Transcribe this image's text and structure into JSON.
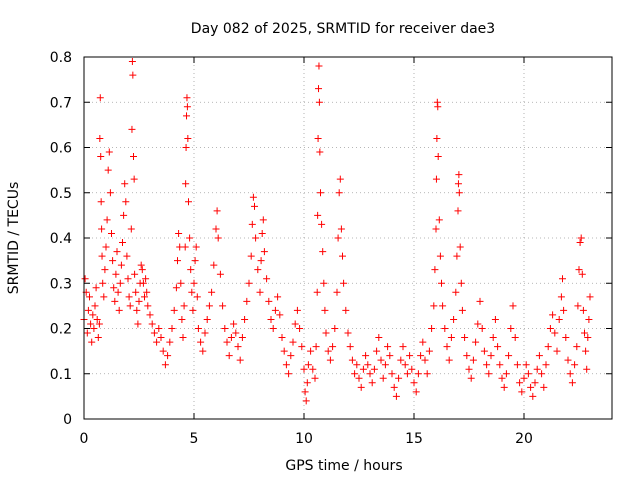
{
  "chart_data": {
    "type": "scatter",
    "title": "Day 082 of 2025, SRMTID for receiver dae3",
    "xlabel": "GPS time / hours",
    "ylabel": "SRMTID / TECUs",
    "xlim": [
      0,
      24
    ],
    "ylim": [
      0,
      0.8
    ],
    "xticks": [
      0,
      5,
      10,
      15,
      20
    ],
    "xtick_labels": [
      "0",
      "5",
      "10",
      "15",
      "20"
    ],
    "yticks": [
      0,
      0.1,
      0.2,
      0.3,
      0.4,
      0.5,
      0.6,
      0.7,
      0.8
    ],
    "ytick_labels": [
      "0",
      "0.1",
      "0.2",
      "0.3",
      "0.4",
      "0.5",
      "0.6",
      "0.7",
      "0.8"
    ],
    "grid": true,
    "marker": "+",
    "color": "#ff0000",
    "series": [
      {
        "name": "SRMTID",
        "points": [
          [
            0.0,
            0.22
          ],
          [
            0.05,
            0.31
          ],
          [
            0.1,
            0.28
          ],
          [
            0.15,
            0.19
          ],
          [
            0.2,
            0.24
          ],
          [
            0.25,
            0.27
          ],
          [
            0.3,
            0.21
          ],
          [
            0.35,
            0.17
          ],
          [
            0.4,
            0.23
          ],
          [
            0.45,
            0.2
          ],
          [
            0.5,
            0.25
          ],
          [
            0.55,
            0.29
          ],
          [
            0.6,
            0.22
          ],
          [
            0.65,
            0.18
          ],
          [
            0.7,
            0.21
          ],
          [
            0.72,
            0.62
          ],
          [
            0.74,
            0.71
          ],
          [
            0.76,
            0.58
          ],
          [
            0.78,
            0.48
          ],
          [
            0.8,
            0.42
          ],
          [
            0.82,
            0.36
          ],
          [
            0.85,
            0.3
          ],
          [
            0.9,
            0.27
          ],
          [
            0.95,
            0.33
          ],
          [
            1.0,
            0.38
          ],
          [
            1.05,
            0.44
          ],
          [
            1.1,
            0.55
          ],
          [
            1.15,
            0.59
          ],
          [
            1.2,
            0.5
          ],
          [
            1.25,
            0.41
          ],
          [
            1.3,
            0.35
          ],
          [
            1.35,
            0.29
          ],
          [
            1.4,
            0.26
          ],
          [
            1.45,
            0.32
          ],
          [
            1.5,
            0.37
          ],
          [
            1.55,
            0.28
          ],
          [
            1.6,
            0.24
          ],
          [
            1.65,
            0.3
          ],
          [
            1.7,
            0.34
          ],
          [
            1.75,
            0.39
          ],
          [
            1.8,
            0.45
          ],
          [
            1.85,
            0.52
          ],
          [
            1.9,
            0.48
          ],
          [
            1.95,
            0.36
          ],
          [
            2.0,
            0.31
          ],
          [
            2.05,
            0.27
          ],
          [
            2.1,
            0.25
          ],
          [
            2.15,
            0.42
          ],
          [
            2.18,
            0.64
          ],
          [
            2.2,
            0.79
          ],
          [
            2.22,
            0.76
          ],
          [
            2.25,
            0.58
          ],
          [
            2.28,
            0.53
          ],
          [
            2.3,
            0.32
          ],
          [
            2.35,
            0.28
          ],
          [
            2.4,
            0.24
          ],
          [
            2.45,
            0.21
          ],
          [
            2.5,
            0.26
          ],
          [
            2.55,
            0.3
          ],
          [
            2.6,
            0.34
          ],
          [
            2.65,
            0.33
          ],
          [
            2.7,
            0.3
          ],
          [
            2.75,
            0.27
          ],
          [
            2.8,
            0.31
          ],
          [
            2.85,
            0.28
          ],
          [
            2.9,
            0.25
          ],
          [
            3.0,
            0.23
          ],
          [
            3.1,
            0.21
          ],
          [
            3.2,
            0.19
          ],
          [
            3.3,
            0.17
          ],
          [
            3.4,
            0.2
          ],
          [
            3.5,
            0.18
          ],
          [
            3.6,
            0.15
          ],
          [
            3.7,
            0.12
          ],
          [
            3.8,
            0.14
          ],
          [
            3.9,
            0.17
          ],
          [
            4.0,
            0.2
          ],
          [
            4.1,
            0.24
          ],
          [
            4.2,
            0.29
          ],
          [
            4.25,
            0.35
          ],
          [
            4.3,
            0.41
          ],
          [
            4.35,
            0.38
          ],
          [
            4.4,
            0.3
          ],
          [
            4.45,
            0.22
          ],
          [
            4.5,
            0.18
          ],
          [
            4.55,
            0.25
          ],
          [
            4.6,
            0.38
          ],
          [
            4.62,
            0.52
          ],
          [
            4.64,
            0.6
          ],
          [
            4.66,
            0.67
          ],
          [
            4.68,
            0.71
          ],
          [
            4.7,
            0.69
          ],
          [
            4.72,
            0.62
          ],
          [
            4.75,
            0.48
          ],
          [
            4.8,
            0.4
          ],
          [
            4.85,
            0.33
          ],
          [
            4.9,
            0.28
          ],
          [
            4.95,
            0.24
          ],
          [
            5.0,
            0.3
          ],
          [
            5.05,
            0.35
          ],
          [
            5.1,
            0.38
          ],
          [
            5.15,
            0.27
          ],
          [
            5.2,
            0.2
          ],
          [
            5.3,
            0.17
          ],
          [
            5.4,
            0.15
          ],
          [
            5.5,
            0.19
          ],
          [
            5.6,
            0.22
          ],
          [
            5.7,
            0.25
          ],
          [
            5.8,
            0.28
          ],
          [
            5.9,
            0.34
          ],
          [
            6.0,
            0.42
          ],
          [
            6.05,
            0.46
          ],
          [
            6.1,
            0.4
          ],
          [
            6.2,
            0.32
          ],
          [
            6.3,
            0.25
          ],
          [
            6.4,
            0.2
          ],
          [
            6.5,
            0.17
          ],
          [
            6.6,
            0.14
          ],
          [
            6.7,
            0.18
          ],
          [
            6.8,
            0.21
          ],
          [
            6.9,
            0.19
          ],
          [
            7.0,
            0.16
          ],
          [
            7.1,
            0.13
          ],
          [
            7.2,
            0.18
          ],
          [
            7.3,
            0.22
          ],
          [
            7.4,
            0.26
          ],
          [
            7.5,
            0.3
          ],
          [
            7.6,
            0.36
          ],
          [
            7.65,
            0.43
          ],
          [
            7.7,
            0.49
          ],
          [
            7.75,
            0.47
          ],
          [
            7.8,
            0.4
          ],
          [
            7.9,
            0.33
          ],
          [
            8.0,
            0.28
          ],
          [
            8.05,
            0.35
          ],
          [
            8.1,
            0.41
          ],
          [
            8.15,
            0.44
          ],
          [
            8.2,
            0.37
          ],
          [
            8.3,
            0.31
          ],
          [
            8.4,
            0.26
          ],
          [
            8.5,
            0.22
          ],
          [
            8.6,
            0.2
          ],
          [
            8.7,
            0.24
          ],
          [
            8.8,
            0.27
          ],
          [
            8.9,
            0.23
          ],
          [
            9.0,
            0.18
          ],
          [
            9.1,
            0.15
          ],
          [
            9.2,
            0.12
          ],
          [
            9.3,
            0.1
          ],
          [
            9.4,
            0.14
          ],
          [
            9.5,
            0.17
          ],
          [
            9.6,
            0.21
          ],
          [
            9.7,
            0.24
          ],
          [
            9.8,
            0.2
          ],
          [
            9.9,
            0.16
          ],
          [
            10.0,
            0.11
          ],
          [
            10.05,
            0.06
          ],
          [
            10.1,
            0.04
          ],
          [
            10.15,
            0.08
          ],
          [
            10.2,
            0.12
          ],
          [
            10.3,
            0.15
          ],
          [
            10.4,
            0.11
          ],
          [
            10.5,
            0.09
          ],
          [
            10.55,
            0.16
          ],
          [
            10.6,
            0.28
          ],
          [
            10.62,
            0.45
          ],
          [
            10.64,
            0.62
          ],
          [
            10.66,
            0.73
          ],
          [
            10.68,
            0.78
          ],
          [
            10.7,
            0.7
          ],
          [
            10.72,
            0.59
          ],
          [
            10.75,
            0.5
          ],
          [
            10.8,
            0.43
          ],
          [
            10.85,
            0.37
          ],
          [
            10.9,
            0.3
          ],
          [
            10.95,
            0.24
          ],
          [
            11.0,
            0.19
          ],
          [
            11.1,
            0.15
          ],
          [
            11.2,
            0.13
          ],
          [
            11.3,
            0.16
          ],
          [
            11.4,
            0.2
          ],
          [
            11.5,
            0.28
          ],
          [
            11.55,
            0.4
          ],
          [
            11.6,
            0.5
          ],
          [
            11.65,
            0.53
          ],
          [
            11.7,
            0.42
          ],
          [
            11.75,
            0.36
          ],
          [
            11.8,
            0.3
          ],
          [
            11.9,
            0.24
          ],
          [
            12.0,
            0.19
          ],
          [
            12.1,
            0.16
          ],
          [
            12.2,
            0.13
          ],
          [
            12.3,
            0.1
          ],
          [
            12.4,
            0.12
          ],
          [
            12.5,
            0.09
          ],
          [
            12.6,
            0.07
          ],
          [
            12.7,
            0.11
          ],
          [
            12.8,
            0.14
          ],
          [
            12.9,
            0.12
          ],
          [
            13.0,
            0.1
          ],
          [
            13.1,
            0.08
          ],
          [
            13.2,
            0.11
          ],
          [
            13.3,
            0.15
          ],
          [
            13.4,
            0.18
          ],
          [
            13.5,
            0.13
          ],
          [
            13.6,
            0.09
          ],
          [
            13.7,
            0.12
          ],
          [
            13.8,
            0.16
          ],
          [
            13.9,
            0.14
          ],
          [
            14.0,
            0.1
          ],
          [
            14.1,
            0.07
          ],
          [
            14.2,
            0.05
          ],
          [
            14.3,
            0.09
          ],
          [
            14.4,
            0.13
          ],
          [
            14.5,
            0.16
          ],
          [
            14.6,
            0.12
          ],
          [
            14.7,
            0.1
          ],
          [
            14.8,
            0.14
          ],
          [
            14.9,
            0.11
          ],
          [
            15.0,
            0.08
          ],
          [
            15.1,
            0.06
          ],
          [
            15.2,
            0.1
          ],
          [
            15.3,
            0.14
          ],
          [
            15.4,
            0.17
          ],
          [
            15.5,
            0.13
          ],
          [
            15.6,
            0.1
          ],
          [
            15.7,
            0.15
          ],
          [
            15.8,
            0.2
          ],
          [
            15.9,
            0.25
          ],
          [
            15.95,
            0.33
          ],
          [
            16.0,
            0.42
          ],
          [
            16.02,
            0.53
          ],
          [
            16.04,
            0.62
          ],
          [
            16.06,
            0.7
          ],
          [
            16.08,
            0.69
          ],
          [
            16.1,
            0.58
          ],
          [
            16.15,
            0.44
          ],
          [
            16.2,
            0.36
          ],
          [
            16.25,
            0.3
          ],
          [
            16.3,
            0.25
          ],
          [
            16.4,
            0.2
          ],
          [
            16.5,
            0.16
          ],
          [
            16.6,
            0.13
          ],
          [
            16.7,
            0.18
          ],
          [
            16.8,
            0.22
          ],
          [
            16.9,
            0.28
          ],
          [
            16.95,
            0.36
          ],
          [
            17.0,
            0.46
          ],
          [
            17.02,
            0.52
          ],
          [
            17.04,
            0.54
          ],
          [
            17.06,
            0.5
          ],
          [
            17.1,
            0.38
          ],
          [
            17.15,
            0.3
          ],
          [
            17.2,
            0.24
          ],
          [
            17.3,
            0.18
          ],
          [
            17.4,
            0.14
          ],
          [
            17.5,
            0.11
          ],
          [
            17.6,
            0.09
          ],
          [
            17.7,
            0.13
          ],
          [
            17.8,
            0.17
          ],
          [
            17.9,
            0.21
          ],
          [
            18.0,
            0.26
          ],
          [
            18.1,
            0.2
          ],
          [
            18.2,
            0.15
          ],
          [
            18.3,
            0.12
          ],
          [
            18.4,
            0.1
          ],
          [
            18.5,
            0.14
          ],
          [
            18.6,
            0.18
          ],
          [
            18.7,
            0.22
          ],
          [
            18.8,
            0.16
          ],
          [
            18.9,
            0.12
          ],
          [
            19.0,
            0.09
          ],
          [
            19.1,
            0.07
          ],
          [
            19.2,
            0.1
          ],
          [
            19.3,
            0.14
          ],
          [
            19.4,
            0.2
          ],
          [
            19.5,
            0.25
          ],
          [
            19.6,
            0.18
          ],
          [
            19.7,
            0.12
          ],
          [
            19.8,
            0.08
          ],
          [
            19.9,
            0.06
          ],
          [
            20.0,
            0.09
          ],
          [
            20.1,
            0.12
          ],
          [
            20.2,
            0.1
          ],
          [
            20.3,
            0.07
          ],
          [
            20.4,
            0.05
          ],
          [
            20.5,
            0.08
          ],
          [
            20.6,
            0.11
          ],
          [
            20.7,
            0.14
          ],
          [
            20.8,
            0.1
          ],
          [
            20.9,
            0.07
          ],
          [
            21.0,
            0.12
          ],
          [
            21.1,
            0.16
          ],
          [
            21.2,
            0.2
          ],
          [
            21.3,
            0.23
          ],
          [
            21.4,
            0.19
          ],
          [
            21.5,
            0.15
          ],
          [
            21.6,
            0.22
          ],
          [
            21.7,
            0.27
          ],
          [
            21.75,
            0.31
          ],
          [
            21.8,
            0.24
          ],
          [
            21.9,
            0.18
          ],
          [
            22.0,
            0.13
          ],
          [
            22.1,
            0.1
          ],
          [
            22.2,
            0.08
          ],
          [
            22.3,
            0.12
          ],
          [
            22.4,
            0.16
          ],
          [
            22.45,
            0.25
          ],
          [
            22.5,
            0.33
          ],
          [
            22.55,
            0.39
          ],
          [
            22.6,
            0.4
          ],
          [
            22.65,
            0.32
          ],
          [
            22.7,
            0.24
          ],
          [
            22.75,
            0.19
          ],
          [
            22.8,
            0.15
          ],
          [
            22.85,
            0.11
          ],
          [
            22.9,
            0.18
          ],
          [
            22.95,
            0.22
          ],
          [
            23.0,
            0.27
          ]
        ]
      }
    ]
  }
}
